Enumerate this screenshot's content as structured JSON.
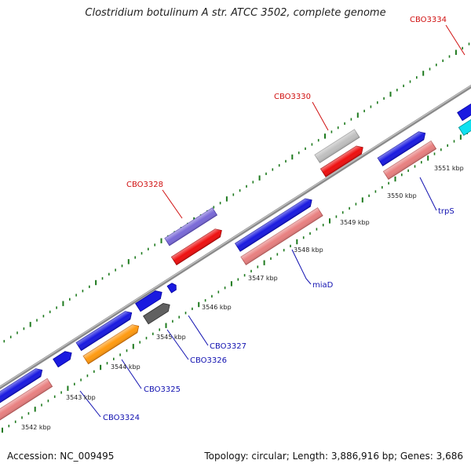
{
  "title": "Clostridium botulinum A str. ATCC 3502, complete genome",
  "footer": {
    "accession": "Accession: NC_009495",
    "summary": "Topology: circular; Length: 3,886,916 bp; Genes: 3,686"
  },
  "colors": {
    "backbone": "#7a7a7a",
    "ticks": "#1e7a1e",
    "label_forward": "#d01010",
    "label_reverse": "#1010b0",
    "blue": "#1a1ae0",
    "pink": "#e88080",
    "red": "#ee1010",
    "grey_light": "#c0c0c0",
    "grey_dark": "#606060",
    "orange": "#ff9a10",
    "purple": "#7a6ad8",
    "cyan": "#10e0f0"
  },
  "kbp_labels": [
    "3542 kbp",
    "3543 kbp",
    "3544 kbp",
    "3545 kbp",
    "3546 kbp",
    "3547 kbp",
    "3548 kbp",
    "3549 kbp",
    "3550 kbp",
    "3551 kbp"
  ],
  "gene_labels": {
    "forward": [
      "CBO3328",
      "CBO3330",
      "CBO3334"
    ],
    "reverse": [
      "CBO3324",
      "CBO3325",
      "CBO3326",
      "CBO3327",
      "miaD",
      "trpS"
    ]
  }
}
